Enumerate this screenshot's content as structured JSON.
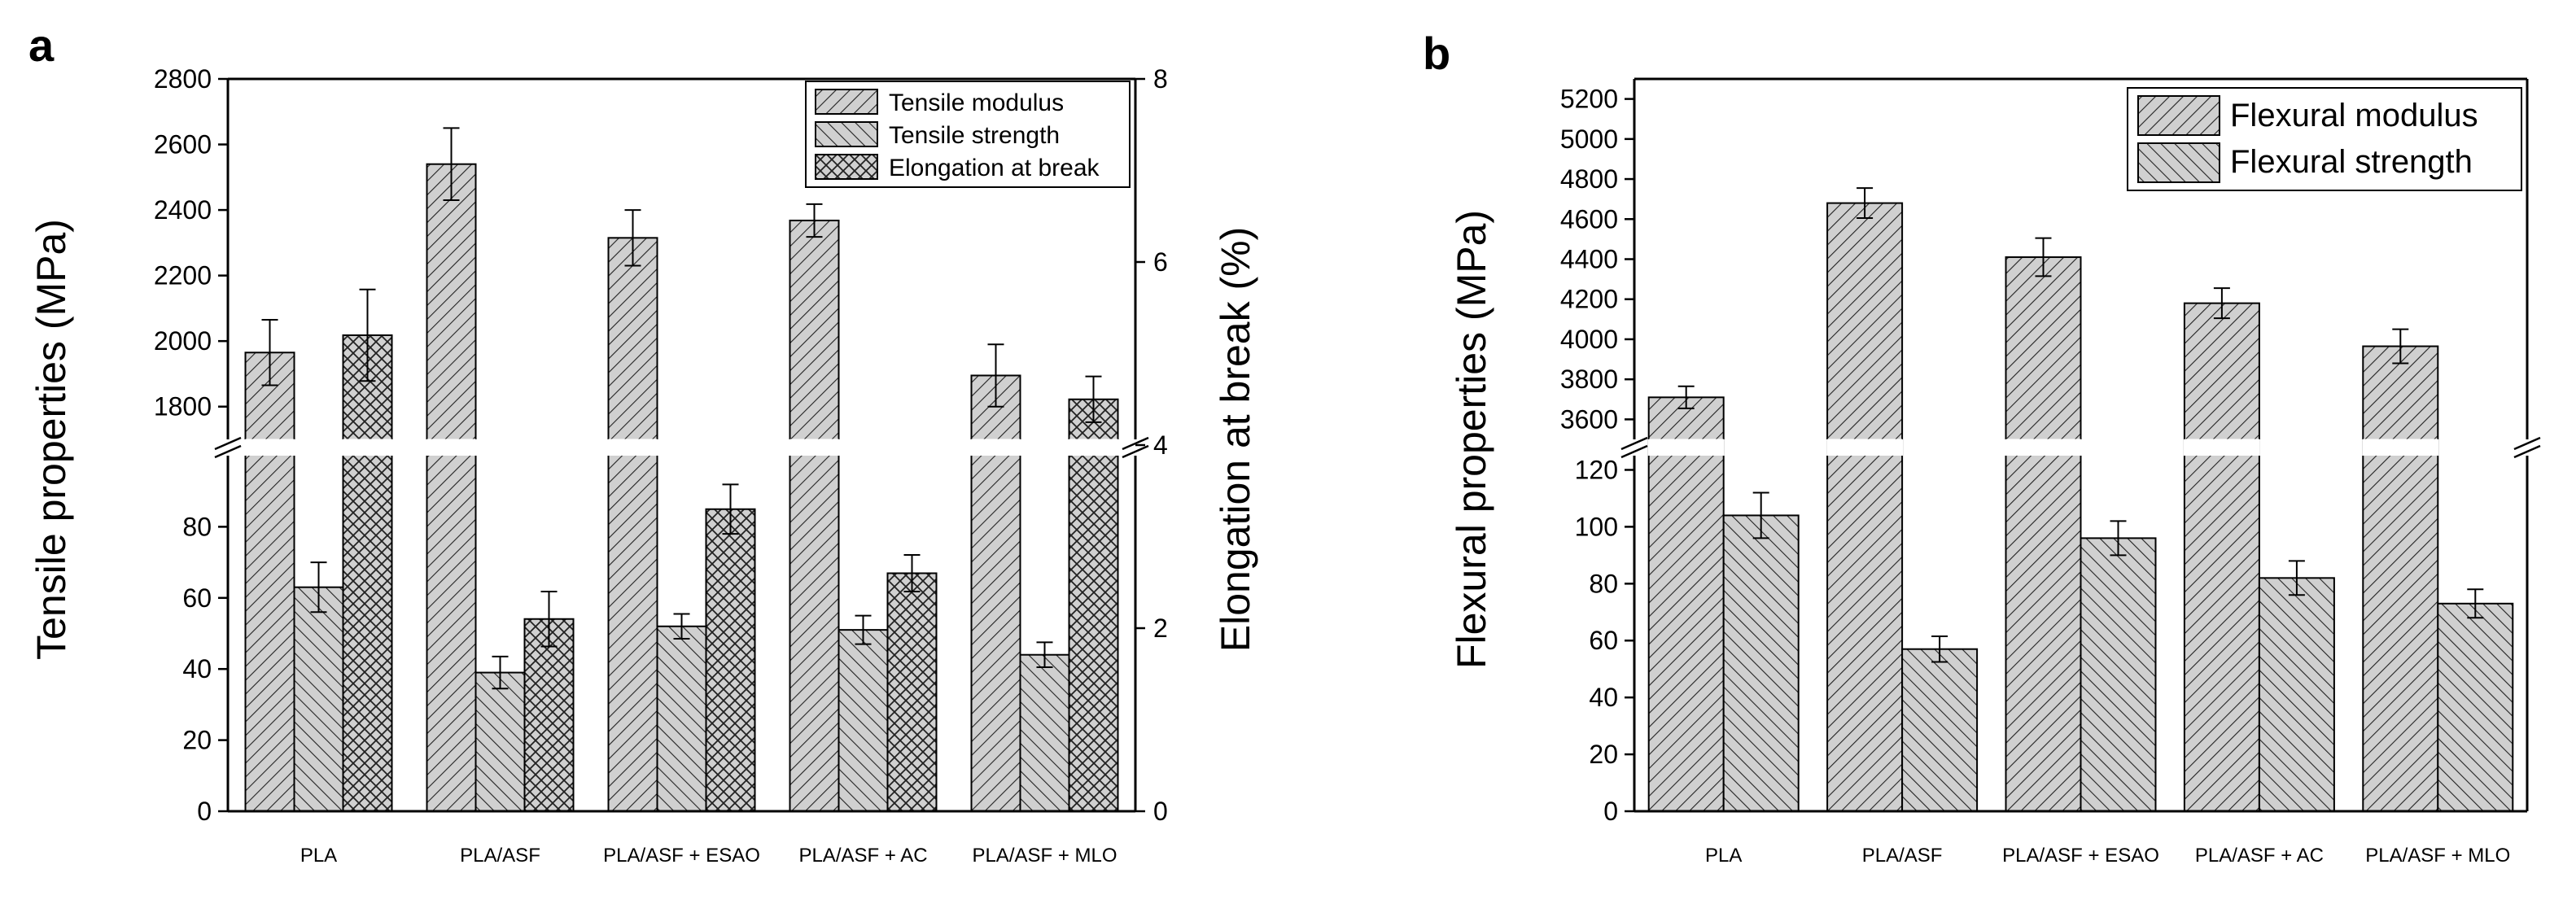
{
  "chart_data": [
    {
      "panel": "a",
      "type": "bar",
      "broken_y_axis": true,
      "categories": [
        "PLA",
        "PLA/ASF",
        "PLA/ASF + ESAO",
        "PLA/ASF + AC",
        "PLA/ASF + MLO"
      ],
      "ylabel": "Tensile properties (MPa)",
      "y2label": "Elongation at break (%)",
      "y_upper_range": [
        1700,
        2800
      ],
      "y_lower_range": [
        0,
        100
      ],
      "y2_range": [
        0,
        8
      ],
      "y_upper_ticks": [
        "1800",
        "2000",
        "2200",
        "2400",
        "2600",
        "2800"
      ],
      "y_lower_ticks": [
        "0",
        "20",
        "40",
        "60",
        "80"
      ],
      "y2_ticks": [
        "0",
        "2",
        "4",
        "6",
        "8"
      ],
      "legend_position": "top-right",
      "series": [
        {
          "name": "Tensile modulus",
          "axis": "left",
          "values": [
            1965,
            2540,
            2315,
            2368,
            1895
          ],
          "errors": [
            100,
            110,
            85,
            50,
            95
          ]
        },
        {
          "name": "Tensile strength",
          "axis": "left",
          "values": [
            63,
            39,
            52,
            51,
            44
          ],
          "errors": [
            7,
            4.5,
            3.5,
            4,
            3.5
          ]
        },
        {
          "name": "Elongation at break",
          "axis": "right",
          "values": [
            5.2,
            2.1,
            3.3,
            2.6,
            4.5
          ],
          "errors": [
            0.5,
            0.3,
            0.27,
            0.2,
            0.25
          ]
        }
      ]
    },
    {
      "panel": "b",
      "type": "bar",
      "broken_y_axis": true,
      "categories": [
        "PLA",
        "PLA/ASF",
        "PLA/ASF + ESAO",
        "PLA/ASF + AC",
        "PLA/ASF + MLO"
      ],
      "ylabel": "Flexural properties (MPa)",
      "y_upper_range": [
        3500,
        5300
      ],
      "y_lower_range": [
        0,
        125
      ],
      "y_upper_ticks": [
        "3600",
        "3800",
        "4000",
        "4200",
        "4400",
        "4600",
        "4800",
        "5000",
        "5200"
      ],
      "y_lower_ticks": [
        "0",
        "20",
        "40",
        "60",
        "80",
        "100",
        "120"
      ],
      "legend_position": "top-right",
      "series": [
        {
          "name": "Flexural modulus",
          "values": [
            3710,
            4680,
            4410,
            4180,
            3965
          ],
          "errors": [
            55,
            75,
            95,
            75,
            85
          ]
        },
        {
          "name": "Flexural strength",
          "values": [
            104,
            57,
            96,
            82,
            73
          ],
          "errors": [
            8,
            4.5,
            6,
            6,
            5
          ]
        }
      ]
    }
  ]
}
